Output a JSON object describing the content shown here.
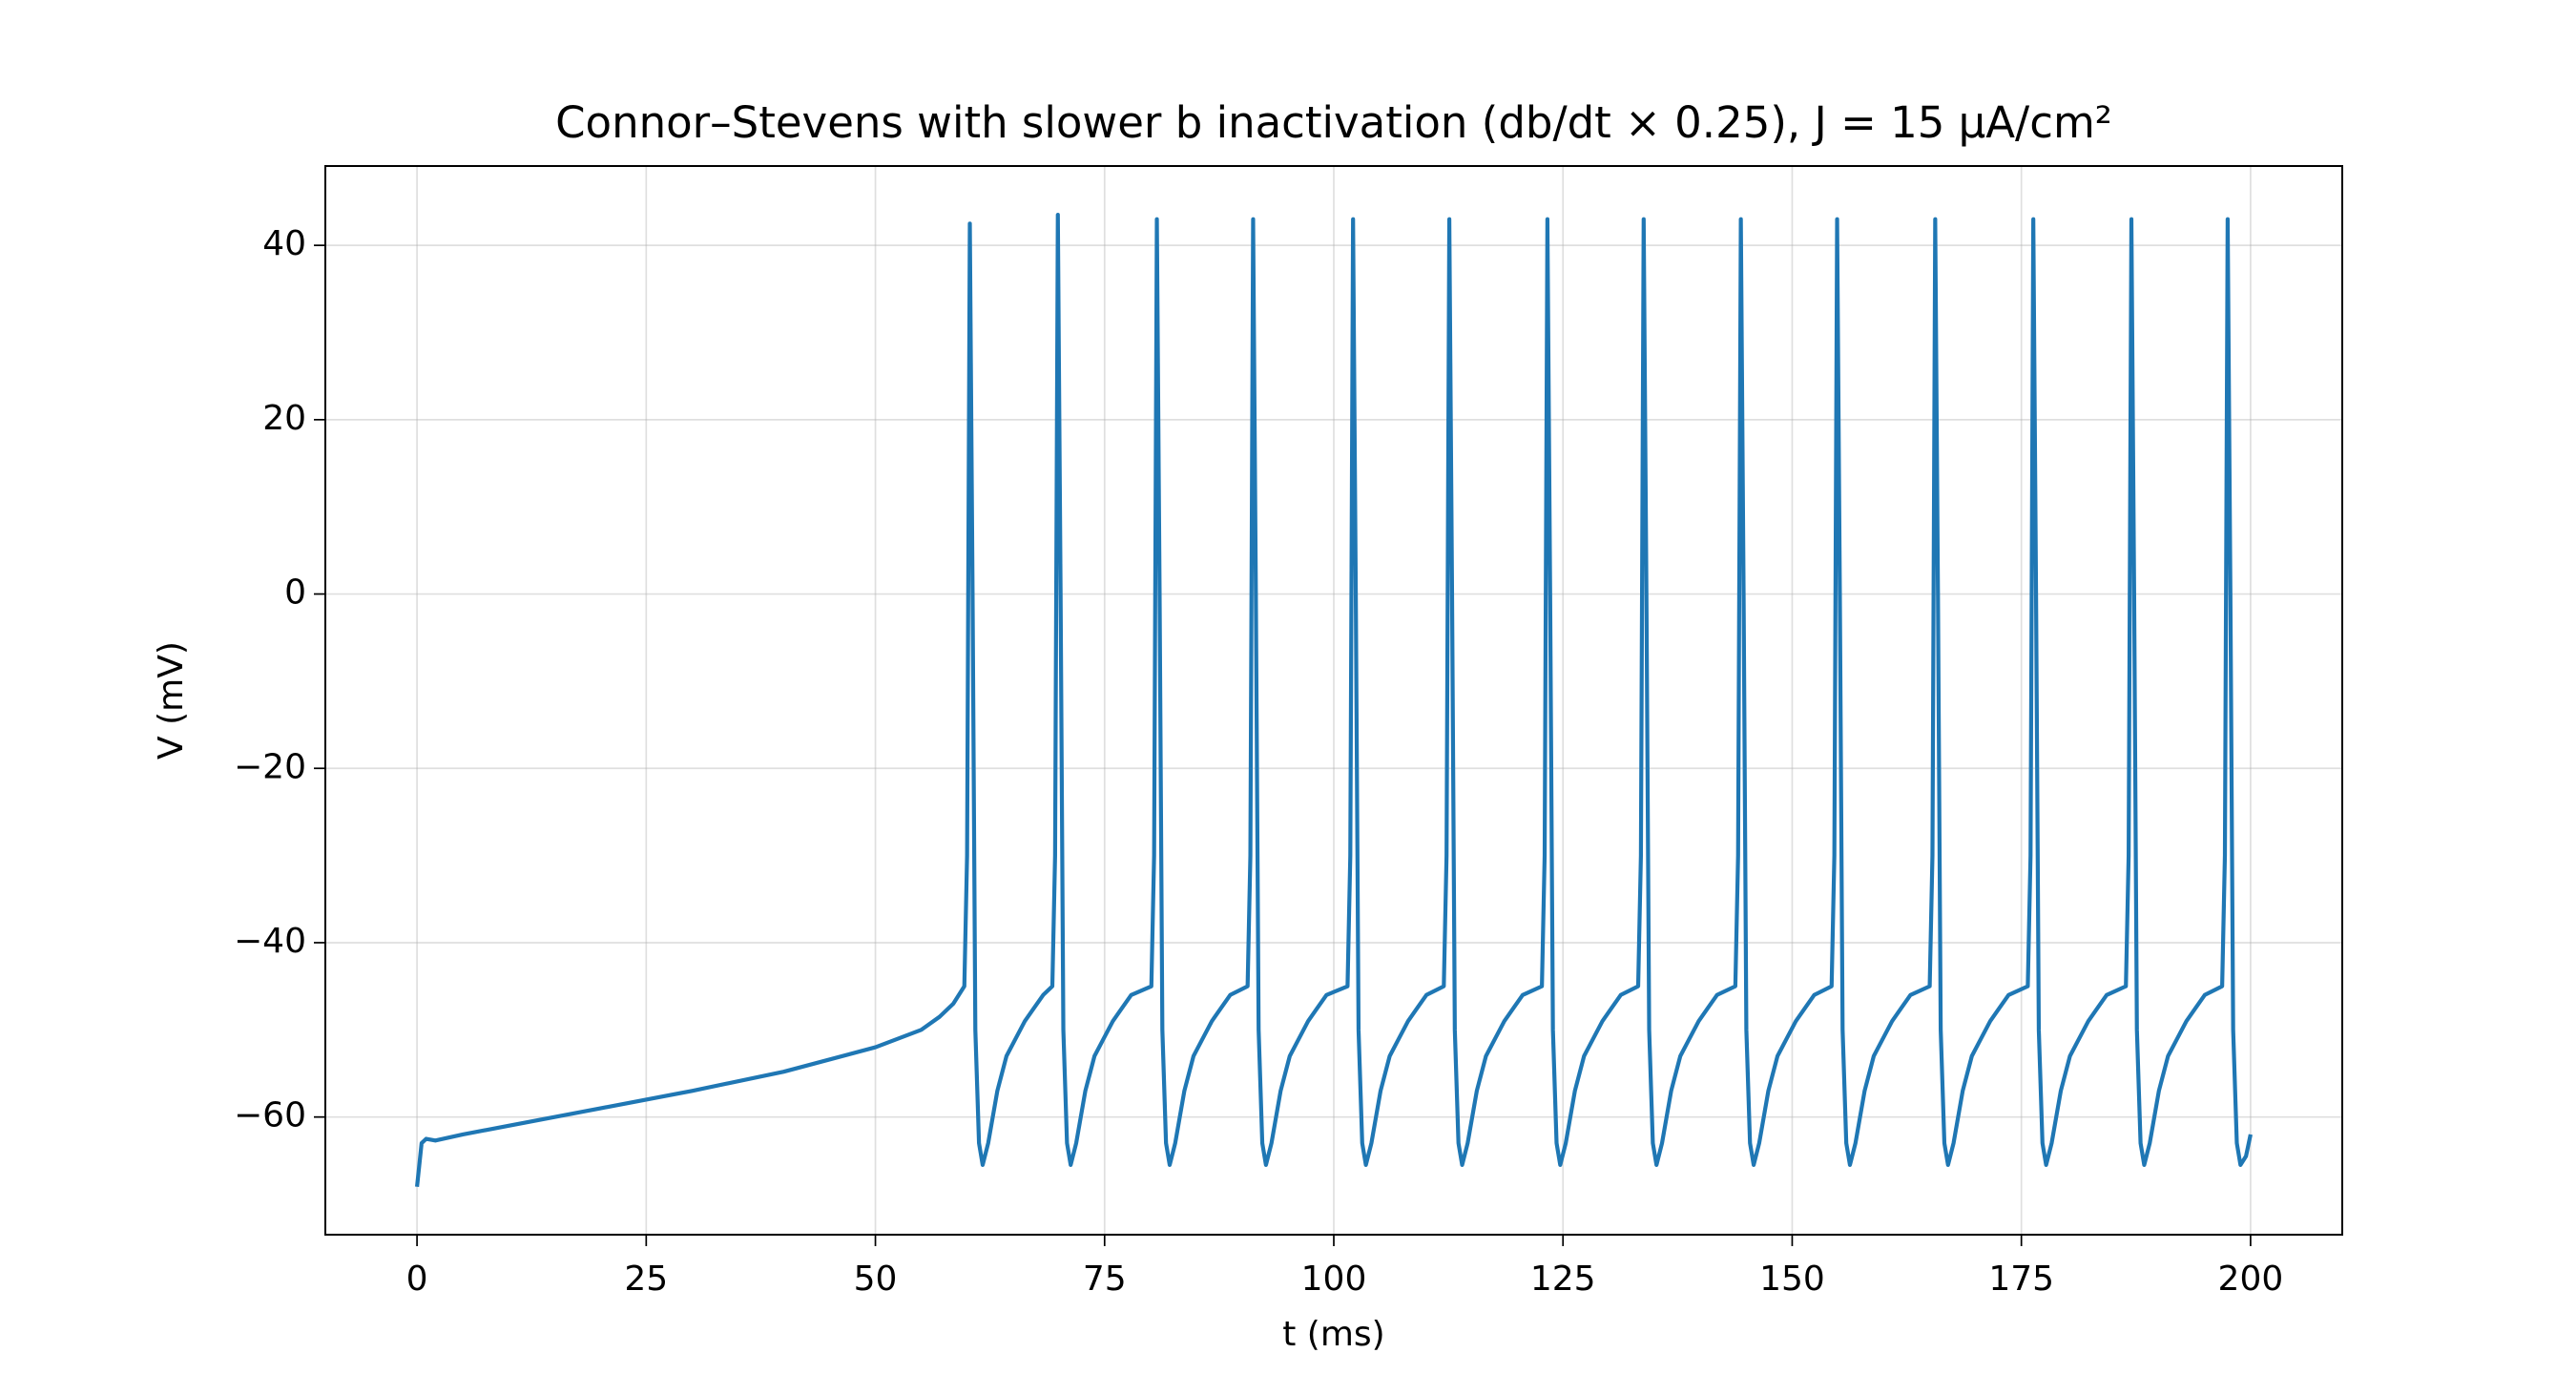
{
  "chart_data": {
    "type": "line",
    "title": "Connor–Stevens with slower b inactivation (db/dt × 0.25), J = 15 µA/cm²",
    "x_label": "t (ms)",
    "y_label": "V (mV)",
    "x": [
      0,
      0.5,
      1,
      2,
      5,
      10,
      20,
      30,
      40,
      50,
      55,
      57,
      58.5,
      59.7,
      60.0,
      60.3,
      60.6,
      60.9,
      61.3,
      61.7,
      62.3,
      63.3,
      64.3,
      65.3,
      66.3,
      67.3,
      68.3,
      69.3,
      69.6,
      69.9,
      70.2,
      70.5,
      70.9,
      71.3,
      71.9,
      72.9,
      73.9,
      74.9,
      75.9,
      76.9,
      77.9,
      80.1,
      80.4,
      80.7,
      81.0,
      81.3,
      81.7,
      82.1,
      82.7,
      83.7,
      84.7,
      85.7,
      86.7,
      87.7,
      88.7,
      90.6,
      90.9,
      91.2,
      91.5,
      91.8,
      92.2,
      92.6,
      93.2,
      94.2,
      95.2,
      96.2,
      97.2,
      98.2,
      99.2,
      101.5,
      101.8,
      102.1,
      102.4,
      102.7,
      103.1,
      103.5,
      104.1,
      105.1,
      106.1,
      107.1,
      108.1,
      109.1,
      110.1,
      112.0,
      112.3,
      112.6,
      112.9,
      113.2,
      113.6,
      114.0,
      114.6,
      115.6,
      116.6,
      117.6,
      118.6,
      119.6,
      120.6,
      122.7,
      123.0,
      123.3,
      123.6,
      123.9,
      124.3,
      124.7,
      125.3,
      126.3,
      127.3,
      128.3,
      129.3,
      130.3,
      131.3,
      133.2,
      133.5,
      133.8,
      134.1,
      134.4,
      134.8,
      135.2,
      135.8,
      136.8,
      137.8,
      138.8,
      139.8,
      140.8,
      141.8,
      143.8,
      144.1,
      144.4,
      144.7,
      145.0,
      145.4,
      145.8,
      146.4,
      147.4,
      148.4,
      149.4,
      150.4,
      151.4,
      152.4,
      154.3,
      154.6,
      154.9,
      155.2,
      155.5,
      155.9,
      156.3,
      156.9,
      157.9,
      158.9,
      159.9,
      160.9,
      161.9,
      162.9,
      165.0,
      165.3,
      165.6,
      165.9,
      166.2,
      166.6,
      167.0,
      167.6,
      168.6,
      169.6,
      170.6,
      171.6,
      172.6,
      173.6,
      175.7,
      176.0,
      176.3,
      176.6,
      176.9,
      177.3,
      177.7,
      178.3,
      179.3,
      180.3,
      181.3,
      182.3,
      183.3,
      184.3,
      186.4,
      186.7,
      187.0,
      187.3,
      187.6,
      188.0,
      188.4,
      189.0,
      190.0,
      191.0,
      192.0,
      193.0,
      194.0,
      195.0,
      196.9,
      197.2,
      197.5,
      197.8,
      198.1,
      198.5,
      198.9,
      199.5,
      200.0
    ],
    "series": [
      {
        "color": "#1f77b4",
        "values": [
          -68,
          -63,
          -62.5,
          -62.7,
          -62,
          -61,
          -59,
          -57,
          -54.8,
          -52,
          -50,
          -48.5,
          -47,
          -45,
          -30,
          42.5,
          0,
          -50,
          -63,
          -65.5,
          -63,
          -57,
          -53,
          -51,
          -49,
          -47.5,
          -46,
          -45,
          -30,
          43.5,
          0,
          -50,
          -63,
          -65.5,
          -63,
          -57,
          -53,
          -51,
          -49,
          -47.5,
          -46,
          -45,
          -30,
          43,
          0,
          -50,
          -63,
          -65.5,
          -63,
          -57,
          -53,
          -51,
          -49,
          -47.5,
          -46,
          -45,
          -30,
          43,
          0,
          -50,
          -63,
          -65.5,
          -63,
          -57,
          -53,
          -51,
          -49,
          -47.5,
          -46,
          -45,
          -30,
          43,
          0,
          -50,
          -63,
          -65.5,
          -63,
          -57,
          -53,
          -51,
          -49,
          -47.5,
          -46,
          -45,
          -30,
          43,
          0,
          -50,
          -63,
          -65.5,
          -63,
          -57,
          -53,
          -51,
          -49,
          -47.5,
          -46,
          -45,
          -30,
          43,
          0,
          -50,
          -63,
          -65.5,
          -63,
          -57,
          -53,
          -51,
          -49,
          -47.5,
          -46,
          -45,
          -30,
          43,
          0,
          -50,
          -63,
          -65.5,
          -63,
          -57,
          -53,
          -51,
          -49,
          -47.5,
          -46,
          -45,
          -30,
          43,
          0,
          -50,
          -63,
          -65.5,
          -63,
          -57,
          -53,
          -51,
          -49,
          -47.5,
          -46,
          -45,
          -30,
          43,
          0,
          -50,
          -63,
          -65.5,
          -63,
          -57,
          -53,
          -51,
          -49,
          -47.5,
          -46,
          -45,
          -30,
          43,
          0,
          -50,
          -63,
          -65.5,
          -63,
          -57,
          -53,
          -51,
          -49,
          -47.5,
          -46,
          -45,
          -30,
          43,
          0,
          -50,
          -63,
          -65.5,
          -63,
          -57,
          -53,
          -51,
          -49,
          -47.5,
          -46,
          -45,
          -30,
          43,
          0,
          -50,
          -63,
          -65.5,
          -63,
          -57,
          -53,
          -51,
          -49,
          -47.5,
          -46,
          -45,
          -30,
          43,
          0,
          -50,
          -63,
          -65.5,
          -64.5,
          -62
        ]
      }
    ],
    "xlim": [
      -10,
      210
    ],
    "ylim": [
      -73.5,
      49.1
    ],
    "xticks": [
      0,
      25,
      50,
      75,
      100,
      125,
      150,
      175,
      200
    ],
    "yticks": [
      {
        "value": -60,
        "label": "−60"
      },
      {
        "value": -40,
        "label": "−40"
      },
      {
        "value": -20,
        "label": "−20"
      },
      0,
      20,
      40
    ],
    "grid": true
  }
}
